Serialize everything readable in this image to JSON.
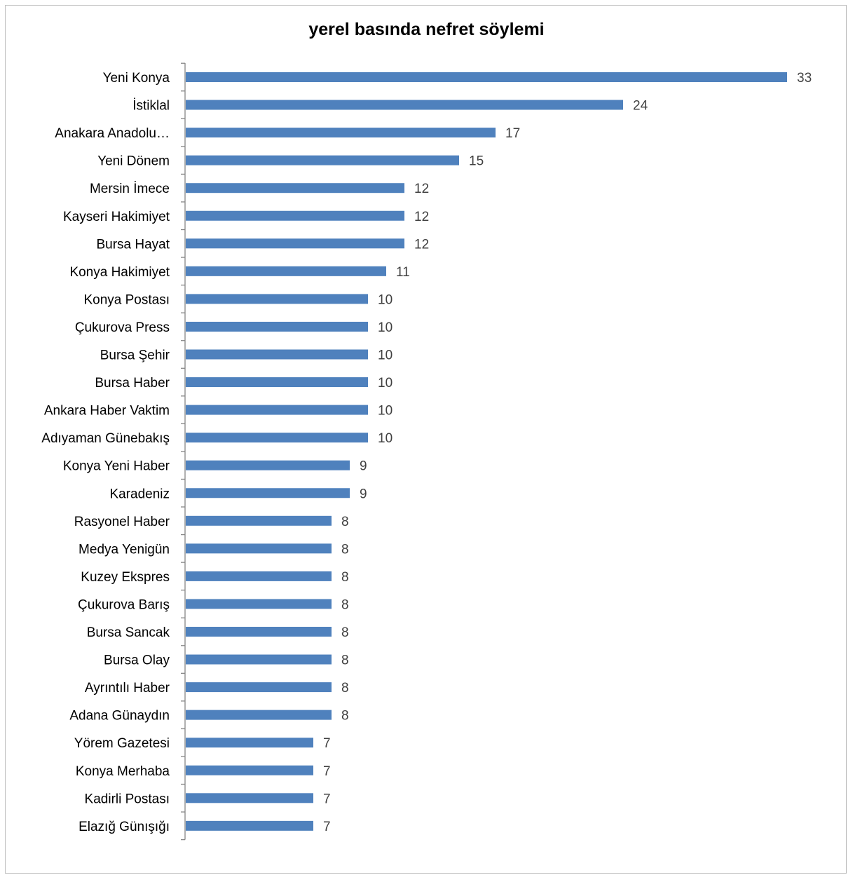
{
  "chart_data": {
    "type": "bar",
    "orientation": "horizontal",
    "title": "yerel basında nefret söylemi",
    "categories": [
      "Yeni Konya",
      "İstiklal",
      "Anakara Anadolu…",
      "Yeni Dönem",
      "Mersin İmece",
      "Kayseri Hakimiyet",
      "Bursa Hayat",
      "Konya Hakimiyet",
      "Konya Postası",
      "Çukurova Press",
      "Bursa Şehir",
      "Bursa Haber",
      "Ankara Haber Vaktim",
      "Adıyaman Günebakış",
      "Konya Yeni Haber",
      "Karadeniz",
      "Rasyonel Haber",
      "Medya Yenigün",
      "Kuzey Ekspres",
      "Çukurova Barış",
      "Bursa Sancak",
      "Bursa Olay",
      "Ayrıntılı Haber",
      "Adana Günaydın",
      "Yörem Gazetesi",
      "Konya Merhaba",
      "Kadirli Postası",
      "Elazığ Günışığı"
    ],
    "values": [
      33,
      24,
      17,
      15,
      12,
      12,
      12,
      11,
      10,
      10,
      10,
      10,
      10,
      10,
      9,
      9,
      8,
      8,
      8,
      8,
      8,
      8,
      8,
      8,
      7,
      7,
      7,
      7
    ],
    "xlim": [
      0,
      33
    ],
    "data_labels": true,
    "grid": false,
    "legend": "none",
    "bar_color": "#4f81bd"
  }
}
